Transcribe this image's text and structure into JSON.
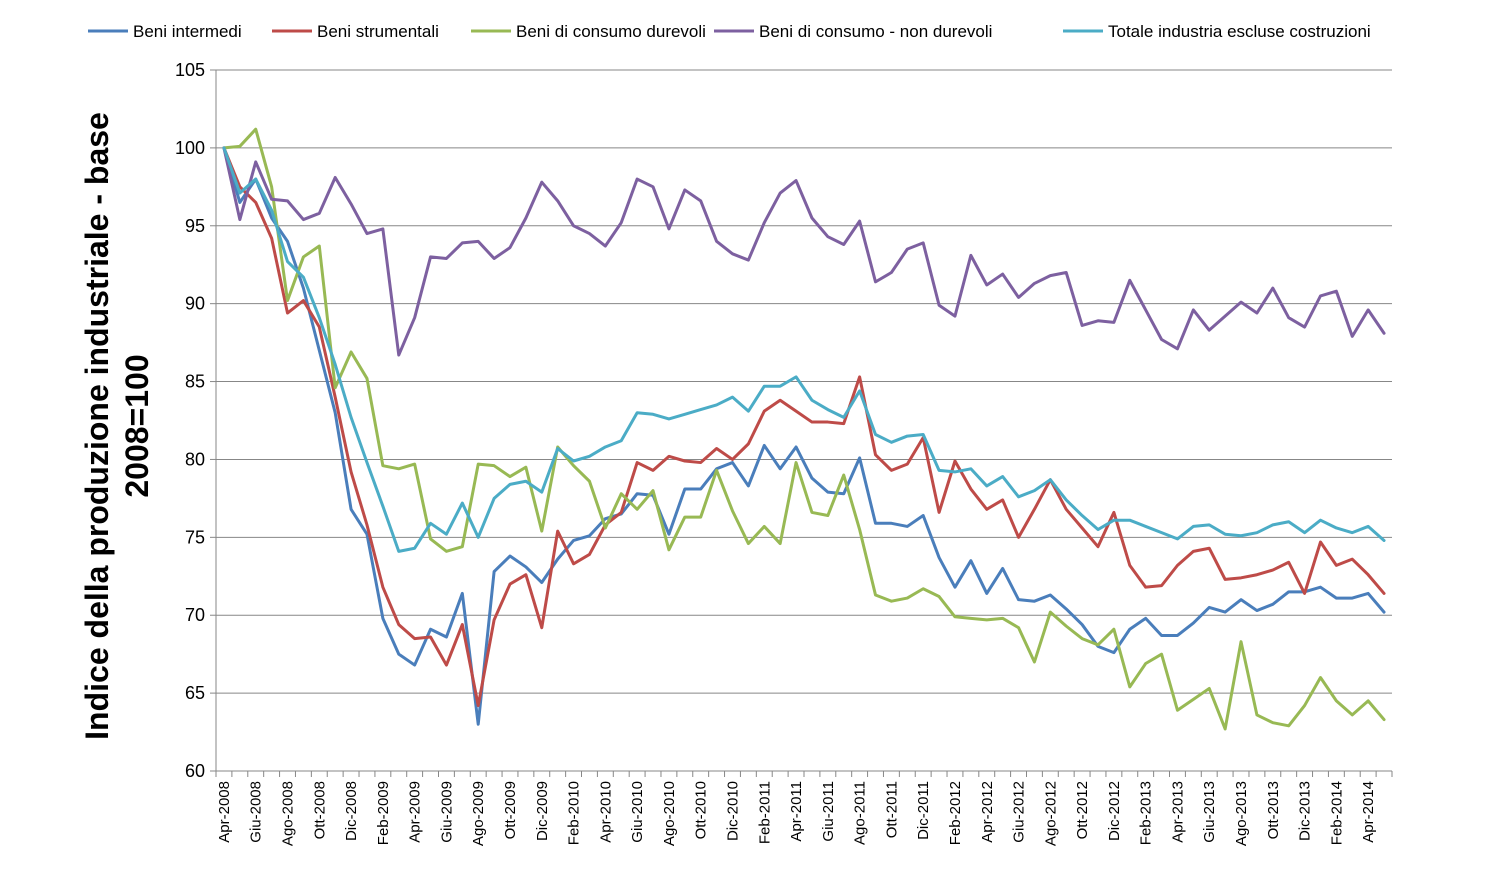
{
  "chart_data": {
    "type": "line",
    "title": "",
    "xlabel": "",
    "ylabel_lines": [
      "Indice della produzione industriale - base",
      "2008=100"
    ],
    "ylim": [
      60,
      105
    ],
    "yticks": [
      60,
      65,
      70,
      75,
      80,
      85,
      90,
      95,
      100,
      105
    ],
    "grid": true,
    "legend_position": "top",
    "x": [
      "Apr-2008",
      "Mag-2008",
      "Giu-2008",
      "Lug-2008",
      "Ago-2008",
      "Set-2008",
      "Ott-2008",
      "Nov-2008",
      "Dic-2008",
      "Gen-2009",
      "Feb-2009",
      "Mar-2009",
      "Apr-2009",
      "Mag-2009",
      "Giu-2009",
      "Lug-2009",
      "Ago-2009",
      "Set-2009",
      "Ott-2009",
      "Nov-2009",
      "Dic-2009",
      "Gen-2010",
      "Feb-2010",
      "Mar-2010",
      "Apr-2010",
      "Mag-2010",
      "Giu-2010",
      "Lug-2010",
      "Ago-2010",
      "Set-2010",
      "Ott-2010",
      "Nov-2010",
      "Dic-2010",
      "Gen-2011",
      "Feb-2011",
      "Mar-2011",
      "Apr-2011",
      "Mag-2011",
      "Giu-2011",
      "Lug-2011",
      "Ago-2011",
      "Set-2011",
      "Ott-2011",
      "Nov-2011",
      "Dic-2011",
      "Gen-2012",
      "Feb-2012",
      "Mar-2012",
      "Apr-2012",
      "Mag-2012",
      "Giu-2012",
      "Lug-2012",
      "Ago-2012",
      "Set-2012",
      "Ott-2012",
      "Nov-2012",
      "Dic-2012",
      "Gen-2013",
      "Feb-2013",
      "Mar-2013",
      "Apr-2013",
      "Mag-2013",
      "Giu-2013",
      "Lug-2013",
      "Ago-2013",
      "Set-2013",
      "Ott-2013",
      "Nov-2013",
      "Dic-2013",
      "Gen-2014",
      "Feb-2014",
      "Mar-2014",
      "Apr-2014",
      "Mag-2014"
    ],
    "x_tick_labels": [
      "Apr-2008",
      "Giu-2008",
      "Ago-2008",
      "Ott-2008",
      "Dic-2008",
      "Feb-2009",
      "Apr-2009",
      "Giu-2009",
      "Ago-2009",
      "Ott-2009",
      "Dic-2009",
      "Feb-2010",
      "Apr-2010",
      "Giu-2010",
      "Ago-2010",
      "Ott-2010",
      "Dic-2010",
      "Feb-2011",
      "Apr-2011",
      "Giu-2011",
      "Ago-2011",
      "Ott-2011",
      "Dic-2011",
      "Feb-2012",
      "Apr-2012",
      "Giu-2012",
      "Ago-2012",
      "Ott-2012",
      "Dic-2012",
      "Feb-2013",
      "Apr-2013",
      "Giu-2013",
      "Ago-2013",
      "Ott-2013",
      "Dic-2013",
      "Feb-2014",
      "Apr-2014"
    ],
    "series": [
      {
        "name": "Beni intermedi",
        "color": "#4a7ebb",
        "values": [
          100,
          96.5,
          98,
          95.5,
          94,
          91,
          87,
          83,
          76.8,
          75.2,
          69.8,
          67.5,
          66.8,
          69.1,
          68.6,
          71.4,
          63,
          72.8,
          73.8,
          73.1,
          72.1,
          73.6,
          74.8,
          75.1,
          76.2,
          76.5,
          77.8,
          77.7,
          75.2,
          78.1,
          78.1,
          79.4,
          79.8,
          78.3,
          80.9,
          79.4,
          80.8,
          78.8,
          77.9,
          77.8,
          80.1,
          75.9,
          75.9,
          75.7,
          76.4,
          73.7,
          71.8,
          73.5,
          71.4,
          73,
          71,
          70.9,
          71.3,
          70.4,
          69.4,
          68,
          67.6,
          69.1,
          69.8,
          68.7,
          68.7,
          69.5,
          70.5,
          70.2,
          71,
          70.3,
          70.7,
          71.5,
          71.5,
          71.8,
          71.1,
          71.1,
          71.4,
          70.2
        ]
      },
      {
        "name": "Beni strumentali",
        "color": "#be4b48",
        "values": [
          100,
          97.5,
          96.5,
          94.2,
          89.4,
          90.2,
          88.5,
          84,
          79.2,
          75.8,
          71.8,
          69.4,
          68.5,
          68.6,
          66.8,
          69.4,
          64.2,
          69.7,
          72,
          72.6,
          69.2,
          75.4,
          73.3,
          73.9,
          75.8,
          76.6,
          79.8,
          79.3,
          80.2,
          79.9,
          79.8,
          80.7,
          80,
          81,
          83.1,
          83.8,
          83.1,
          82.4,
          82.4,
          82.3,
          85.3,
          80.3,
          79.3,
          79.7,
          81.4,
          76.6,
          79.9,
          78.1,
          76.8,
          77.4,
          75,
          76.8,
          78.7,
          76.8,
          75.6,
          74.4,
          76.6,
          73.2,
          71.8,
          71.9,
          73.2,
          74.1,
          74.3,
          72.3,
          72.4,
          72.6,
          72.9,
          73.4,
          71.4,
          74.7,
          73.2,
          73.6,
          72.6,
          71.4
        ]
      },
      {
        "name": "Beni di consumo durevoli",
        "color": "#98b954",
        "values": [
          100,
          100.1,
          101.2,
          97.5,
          90.2,
          93,
          93.7,
          84.6,
          86.9,
          85.2,
          79.6,
          79.4,
          79.7,
          74.9,
          74.1,
          74.4,
          79.7,
          79.6,
          78.9,
          79.5,
          75.4,
          80.8,
          79.6,
          78.6,
          75.6,
          77.8,
          76.8,
          78,
          74.2,
          76.3,
          76.3,
          79.3,
          76.7,
          74.6,
          75.7,
          74.6,
          79.8,
          76.6,
          76.4,
          79,
          75.5,
          71.3,
          70.9,
          71.1,
          71.7,
          71.2,
          69.9,
          69.8,
          69.7,
          69.8,
          69.2,
          67,
          70.2,
          69.3,
          68.5,
          68.1,
          69.1,
          65.4,
          66.9,
          67.5,
          63.9,
          64.6,
          65.3,
          62.7,
          68.3,
          63.6,
          63.1,
          62.9,
          64.2,
          66,
          64.5,
          63.6,
          64.5,
          63.3
        ]
      },
      {
        "name": "Beni di consumo - non durevoli",
        "color": "#7d60a0",
        "values": [
          100,
          95.4,
          99.1,
          96.7,
          96.6,
          95.4,
          95.8,
          98.1,
          96.4,
          94.5,
          94.8,
          86.7,
          89.1,
          93,
          92.9,
          93.9,
          94,
          92.9,
          93.6,
          95.5,
          97.8,
          96.6,
          95,
          94.5,
          93.7,
          95.2,
          98,
          97.5,
          94.8,
          97.3,
          96.6,
          94,
          93.2,
          92.8,
          95.2,
          97.1,
          97.9,
          95.5,
          94.3,
          93.8,
          95.3,
          91.4,
          92,
          93.5,
          93.9,
          89.9,
          89.2,
          93.1,
          91.2,
          91.9,
          90.4,
          91.3,
          91.8,
          92,
          88.6,
          88.9,
          88.8,
          91.5,
          89.6,
          87.7,
          87.1,
          89.6,
          88.3,
          89.2,
          90.1,
          89.4,
          91,
          89.1,
          88.5,
          90.5,
          90.8,
          87.9,
          89.6,
          88.1
        ]
      },
      {
        "name": "Totale industria escluse costruzioni",
        "color": "#4bacc6",
        "values": [
          100,
          97.1,
          98,
          96,
          92.7,
          91.7,
          89.1,
          86.1,
          82.7,
          79.8,
          77,
          74.1,
          74.3,
          75.9,
          75.2,
          77.2,
          75,
          77.5,
          78.4,
          78.6,
          77.9,
          80.7,
          79.9,
          80.2,
          80.8,
          81.2,
          83,
          82.9,
          82.6,
          82.9,
          83.2,
          83.5,
          84,
          83.1,
          84.7,
          84.7,
          85.3,
          83.8,
          83.2,
          82.7,
          84.4,
          81.6,
          81.1,
          81.5,
          81.6,
          79.3,
          79.2,
          79.4,
          78.3,
          78.9,
          77.6,
          78,
          78.7,
          77.4,
          76.4,
          75.5,
          76.1,
          76.1,
          75.7,
          75.3,
          74.9,
          75.7,
          75.8,
          75.2,
          75.1,
          75.3,
          75.8,
          76,
          75.3,
          76.1,
          75.6,
          75.3,
          75.7,
          74.8
        ]
      }
    ]
  }
}
